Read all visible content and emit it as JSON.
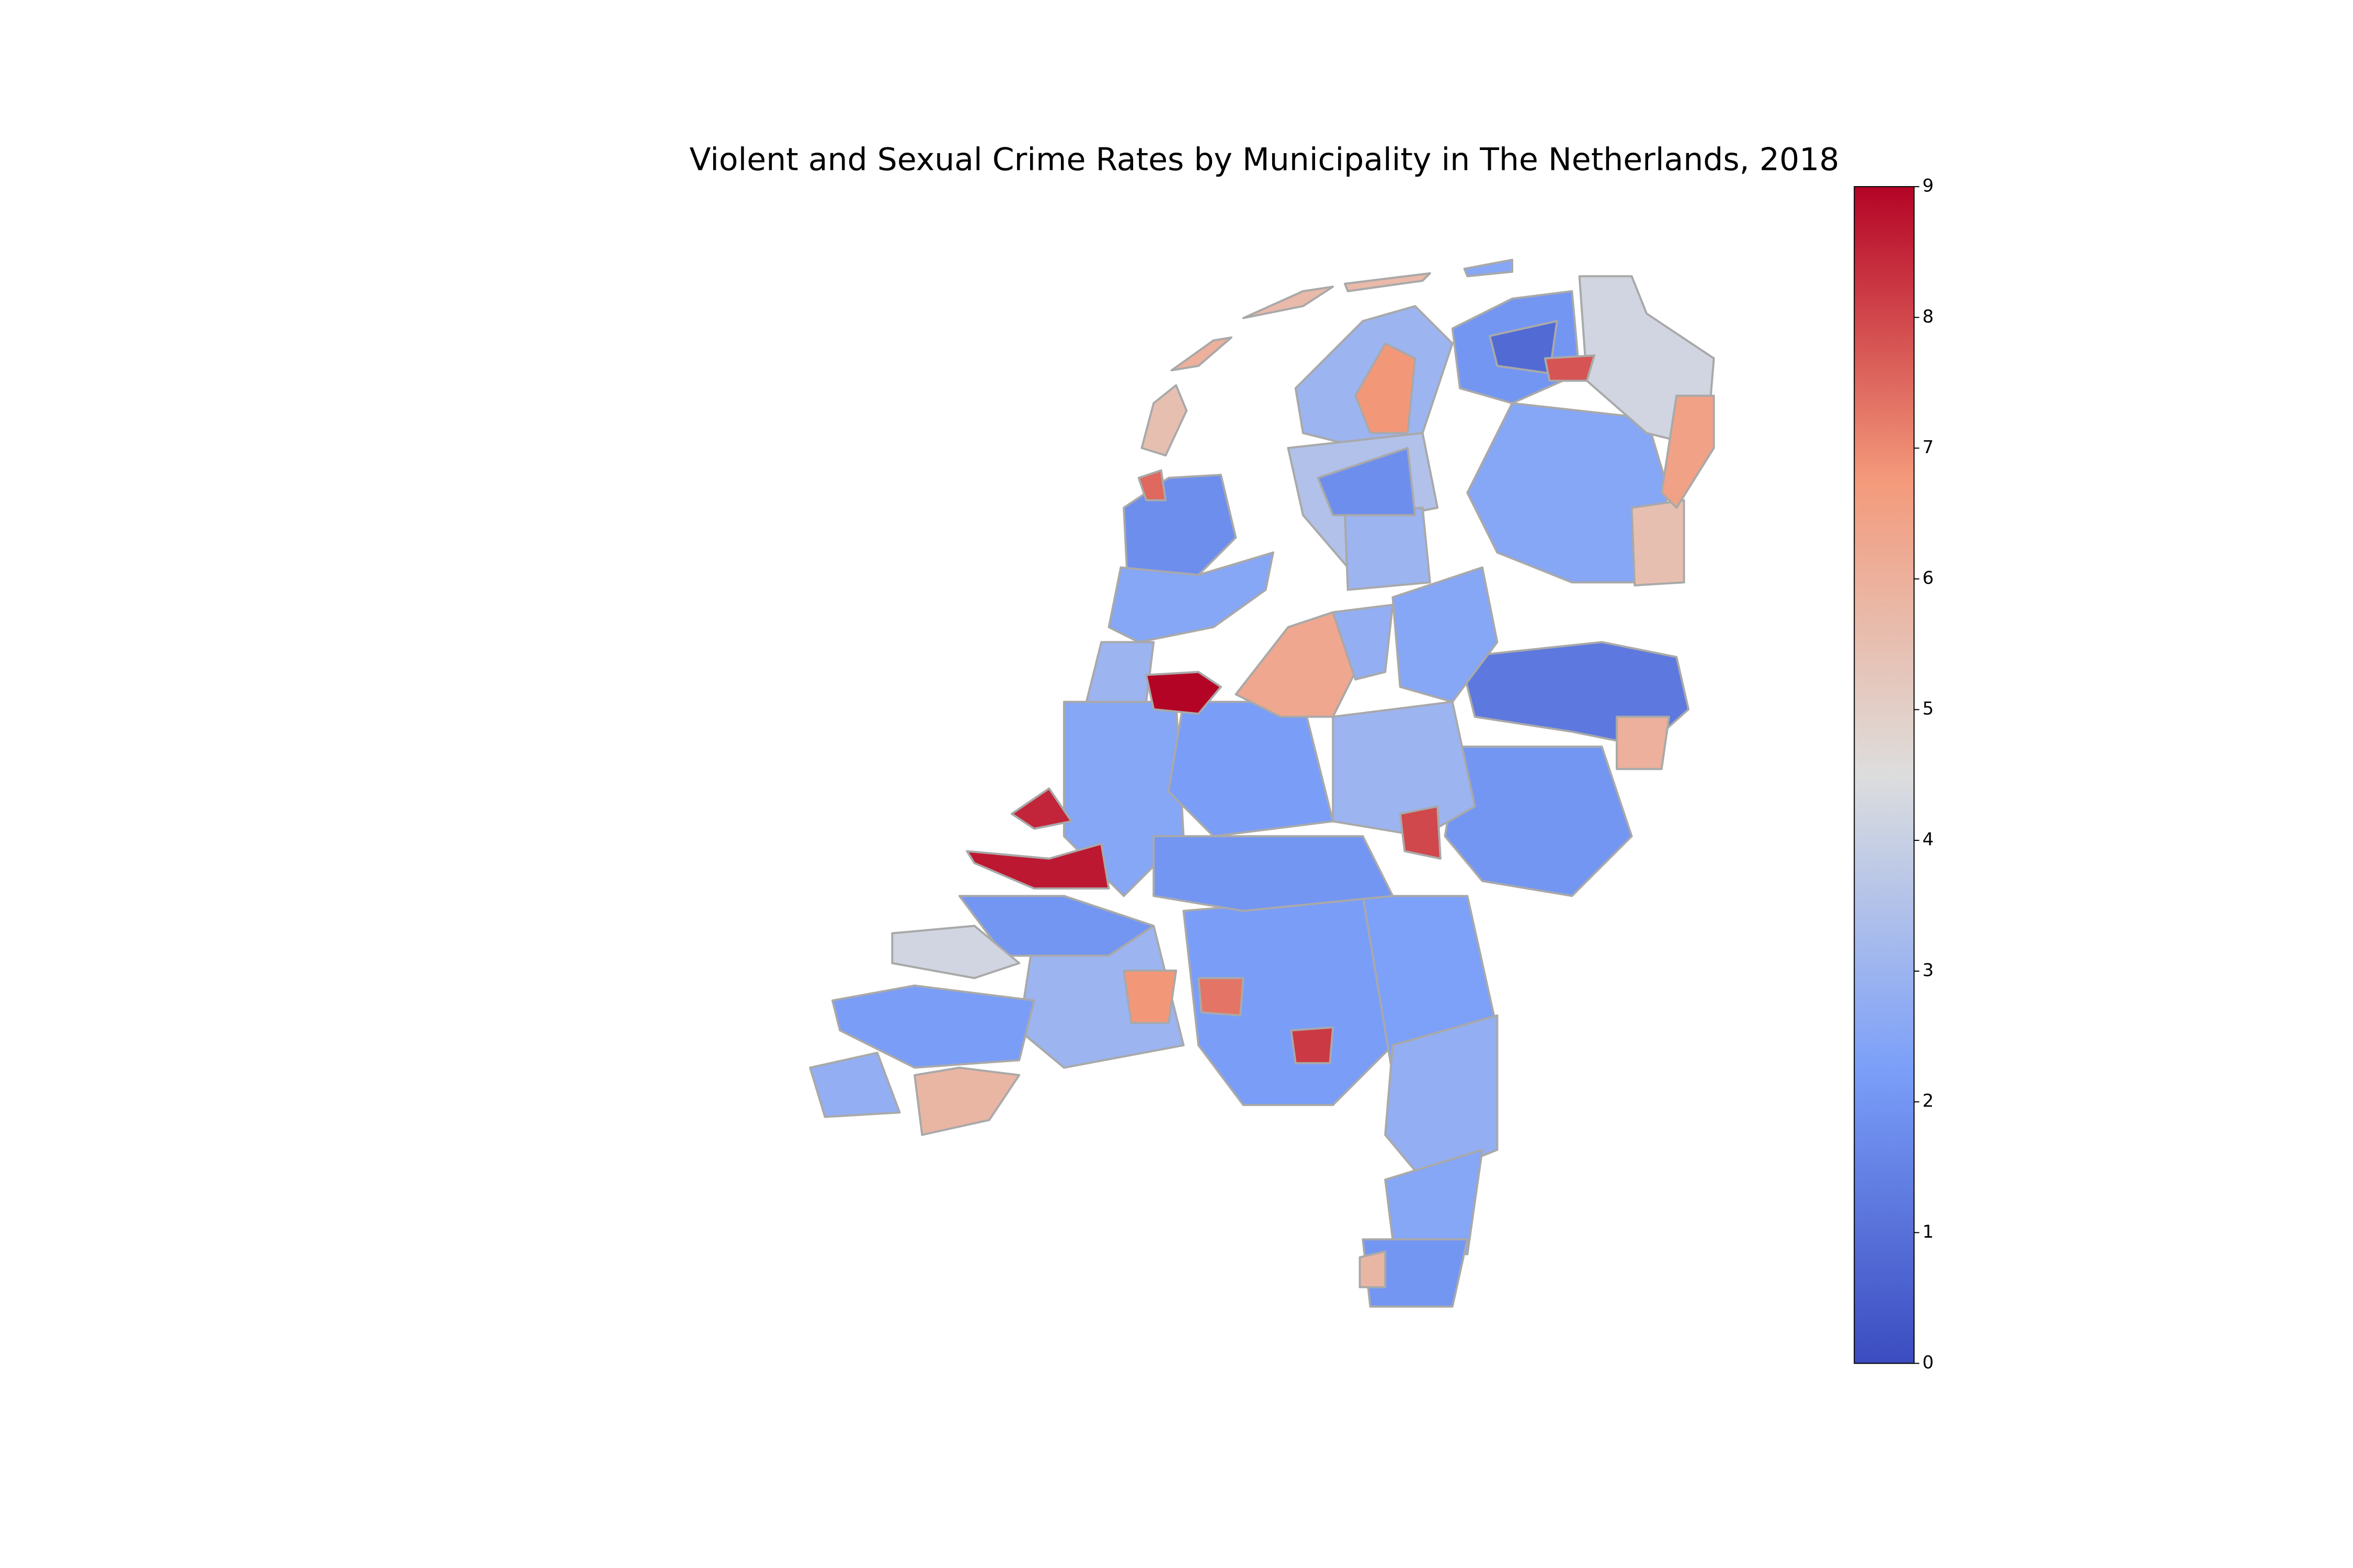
{
  "chart_data": {
    "type": "choropleth",
    "title": "Violent and Sexual Crime Rates by Municipality in The Netherlands, 2018",
    "colormap": "coolwarm",
    "clim": [
      0,
      9
    ],
    "cticks": [
      0,
      1,
      2,
      3,
      4,
      5,
      6,
      7,
      8,
      9
    ],
    "values": [
      5.5,
      6,
      5.7,
      5.7,
      2.5,
      7.5,
      1.8,
      2.5,
      9,
      3,
      3,
      6.8,
      3.5,
      1.8,
      2,
      0.8,
      7.8,
      4.2,
      6.5,
      2.5,
      5.5,
      3,
      6.3,
      2.8,
      2.5,
      1.2,
      6,
      3,
      8,
      2,
      2.2,
      8.5,
      8.7,
      2.5,
      2,
      2,
      4.2,
      2.2,
      2.8,
      5.8,
      3,
      6.8,
      7.3,
      2.2,
      8.2,
      2.3,
      2.8,
      2.5,
      2,
      5.8
    ]
  }
}
